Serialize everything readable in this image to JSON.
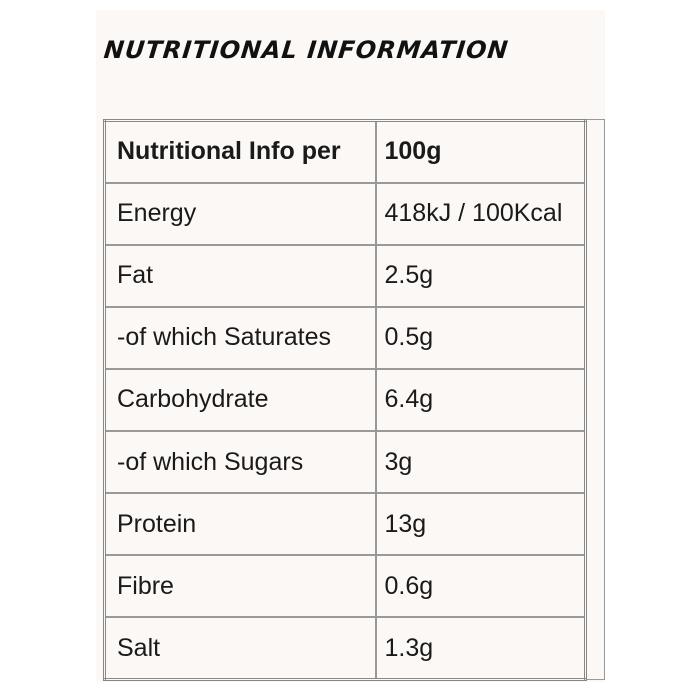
{
  "title": "NUTRITIONAL INFORMATION",
  "table": {
    "header": [
      "Nutritional Info per",
      "100g"
    ],
    "rows": [
      [
        "Energy",
        "418kJ / 100Kcal"
      ],
      [
        "Fat",
        "2.5g"
      ],
      [
        "-of which Saturates",
        "0.5g"
      ],
      [
        "Carbohydrate",
        "6.4g"
      ],
      [
        "-of which Sugars",
        "3g"
      ],
      [
        "Protein",
        "13g"
      ],
      [
        "Fibre",
        "0.6g"
      ],
      [
        "Salt",
        "1.3g"
      ]
    ]
  },
  "colors": {
    "background": "#fcf8f5",
    "border": "#999999",
    "text": "#1a1a1a"
  }
}
